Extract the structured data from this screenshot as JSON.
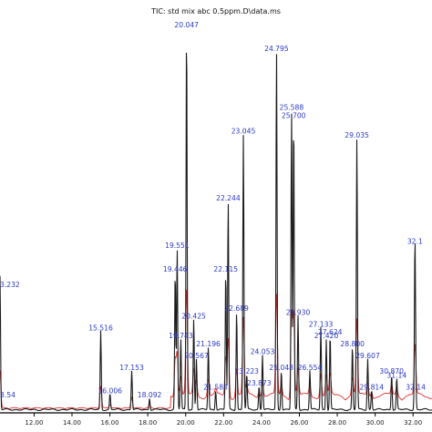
{
  "chart_data": {
    "type": "line",
    "title": "TIC: std mix abc 0.5ppm.D\\data.ms",
    "xlim": [
      10.2,
      33.0
    ],
    "ylim": [
      0,
      100
    ],
    "x_ticks": [
      "12.00",
      "14.00",
      "16.00",
      "18.00",
      "20.00",
      "22.00",
      "24.00",
      "26.00",
      "28.00",
      "30.00",
      "32.00"
    ],
    "x_tick_values": [
      12,
      14,
      16,
      18,
      20,
      22,
      24,
      26,
      28,
      30,
      32
    ],
    "series": [
      {
        "color": "#1a1a1a"
      },
      {
        "color": "#e03030"
      }
    ],
    "peaks": [
      {
        "rt": 10.2,
        "label": "3.232",
        "h": 31
      },
      {
        "rt": 10.2,
        "label": "3.54",
        "h": 3
      },
      {
        "rt": 15.516,
        "label": "15.516",
        "h": 20
      },
      {
        "rt": 16.006,
        "label": "16.006",
        "h": 4
      },
      {
        "rt": 17.153,
        "label": "17.153",
        "h": 10
      },
      {
        "rt": 18.092,
        "label": "18.092",
        "h": 3
      },
      {
        "rt": 19.446,
        "label": "19.446",
        "h": 35
      },
      {
        "rt": 19.551,
        "label": "19.551",
        "h": 41
      },
      {
        "rt": 19.743,
        "label": "19.743",
        "h": 18
      },
      {
        "rt": 20.047,
        "label": "20.047",
        "h": 97
      },
      {
        "rt": 20.425,
        "label": "20.425",
        "h": 23
      },
      {
        "rt": 20.567,
        "label": "20.567",
        "h": 13
      },
      {
        "rt": 21.196,
        "label": "21.196",
        "h": 16
      },
      {
        "rt": 21.583,
        "label": "21.583",
        "h": 5
      },
      {
        "rt": 22.115,
        "label": "22.115",
        "h": 35
      },
      {
        "rt": 22.244,
        "label": "22.244",
        "h": 53
      },
      {
        "rt": 22.689,
        "label": "22.689",
        "h": 25
      },
      {
        "rt": 23.045,
        "label": "23.045",
        "h": 70
      },
      {
        "rt": 23.223,
        "label": "23.223",
        "h": 9
      },
      {
        "rt": 23.873,
        "label": "23.873",
        "h": 6
      },
      {
        "rt": 24.053,
        "label": "24.053",
        "h": 14
      },
      {
        "rt": 24.795,
        "label": "24.795",
        "h": 91
      },
      {
        "rt": 25.048,
        "label": "25.048",
        "h": 10
      },
      {
        "rt": 25.588,
        "label": "25.588",
        "h": 76
      },
      {
        "rt": 25.7,
        "label": "25.700",
        "h": 74
      },
      {
        "rt": 25.93,
        "label": "25.930",
        "h": 24
      },
      {
        "rt": 26.554,
        "label": "26.554",
        "h": 10
      },
      {
        "rt": 27.133,
        "label": "27.133",
        "h": 21
      },
      {
        "rt": 27.42,
        "label": "27.420",
        "h": 18
      },
      {
        "rt": 27.624,
        "label": "27.624",
        "h": 19
      },
      {
        "rt": 28.8,
        "label": "28.800",
        "h": 16
      },
      {
        "rt": 29.035,
        "label": "29.035",
        "h": 69
      },
      {
        "rt": 29.607,
        "label": "29.607",
        "h": 13
      },
      {
        "rt": 29.814,
        "label": "29.814",
        "h": 5
      },
      {
        "rt": 30.87,
        "label": "30.870",
        "h": 9
      },
      {
        "rt": 31.14,
        "label": "31.14",
        "h": 8
      },
      {
        "rt": 32.14,
        "label": "32.14",
        "h": 5
      },
      {
        "rt": 32.1,
        "label": "32.1",
        "h": 42
      }
    ]
  }
}
